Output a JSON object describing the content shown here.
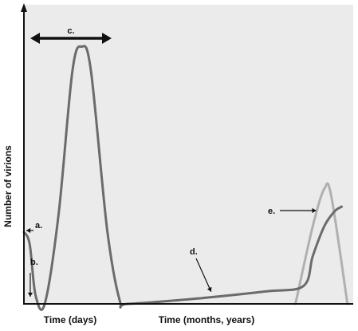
{
  "chart_data": {
    "type": "line",
    "title": "",
    "ylabel": "Number of virions",
    "x_axis_labels": [
      "Time (days)",
      "Time (months, years)"
    ],
    "grid": false,
    "legend": "none",
    "colors": {
      "background": "#ebebeb",
      "main_curve": "#6b6b6b",
      "second_curve": "#b0b0b0",
      "axis": "#111111"
    },
    "series": [
      {
        "values": [
          [
            0,
            0.24
          ],
          [
            0.5,
            0.2
          ],
          [
            1.0,
            0.03
          ],
          [
            1.8,
            0.0
          ],
          [
            3.0,
            0.3
          ],
          [
            4.2,
            0.78
          ],
          [
            5.0,
            0.86
          ],
          [
            5.8,
            0.78
          ],
          [
            7.2,
            0.25
          ],
          [
            8.3,
            0.01
          ],
          [
            9.0,
            0.0
          ],
          [
            15,
            0.018
          ],
          [
            21,
            0.042
          ],
          [
            24.2,
            0.06
          ],
          [
            25.0,
            0.16
          ],
          [
            26.0,
            0.26
          ],
          [
            26.9,
            0.31
          ],
          [
            27.5,
            0.325
          ]
        ]
      },
      {
        "values": [
          [
            23.5,
            0.0
          ],
          [
            25.0,
            0.26
          ],
          [
            26.0,
            0.385
          ],
          [
            26.6,
            0.36
          ],
          [
            28.0,
            0.0
          ]
        ]
      }
    ],
    "annotations": [
      {
        "label": "a.",
        "points_to": "initial viral load at infection"
      },
      {
        "label": "b.",
        "points_to": "trough before acute peak"
      },
      {
        "label": "c.",
        "points_to": "acute phase span (double arrow)"
      },
      {
        "label": "d.",
        "points_to": "clinical latency slow rise"
      },
      {
        "label": "e.",
        "points_to": "late rise"
      }
    ]
  }
}
